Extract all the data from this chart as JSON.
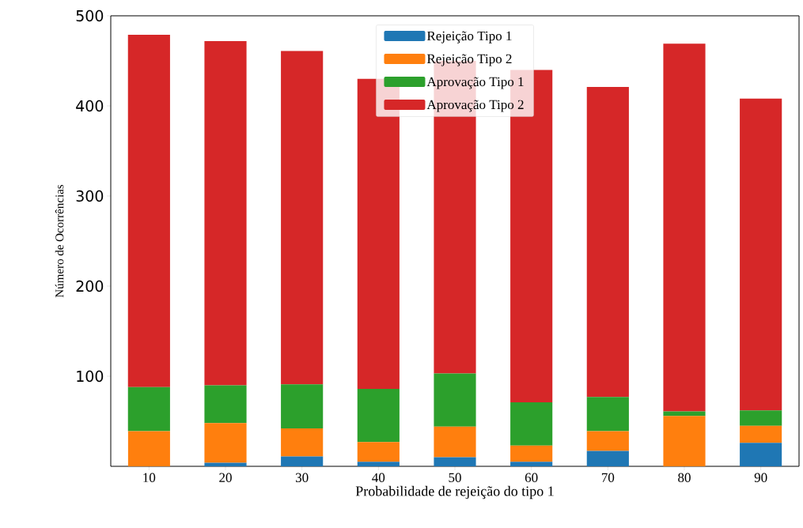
{
  "chart_data": {
    "type": "bar",
    "stacked": true,
    "xlabel": "Probabilidade de rejeição do tipo 1",
    "ylabel": "Número de Ocorrências",
    "categories": [
      "10",
      "20",
      "30",
      "40",
      "50",
      "60",
      "70",
      "80",
      "90"
    ],
    "series": [
      {
        "name": "Rejeição Tipo 1",
        "color": "#1f77b4",
        "values": [
          0,
          4,
          11,
          5,
          10,
          5,
          17,
          0,
          26
        ]
      },
      {
        "name": "Rejeição Tipo 2",
        "color": "#ff7f0e",
        "values": [
          39,
          44,
          31,
          22,
          34,
          18,
          22,
          56,
          19
        ]
      },
      {
        "name": "Aprovação Tipo 1",
        "color": "#2ca02c",
        "values": [
          49,
          42,
          49,
          59,
          59,
          48,
          38,
          5,
          17
        ]
      },
      {
        "name": "Aprovação Tipo 2",
        "color": "#d62728",
        "values": [
          391,
          382,
          370,
          344,
          347,
          369,
          344,
          408,
          346
        ]
      }
    ],
    "ylim": [
      0,
      500
    ],
    "yticks": [
      100,
      200,
      300,
      400,
      500
    ],
    "legend": "top"
  }
}
